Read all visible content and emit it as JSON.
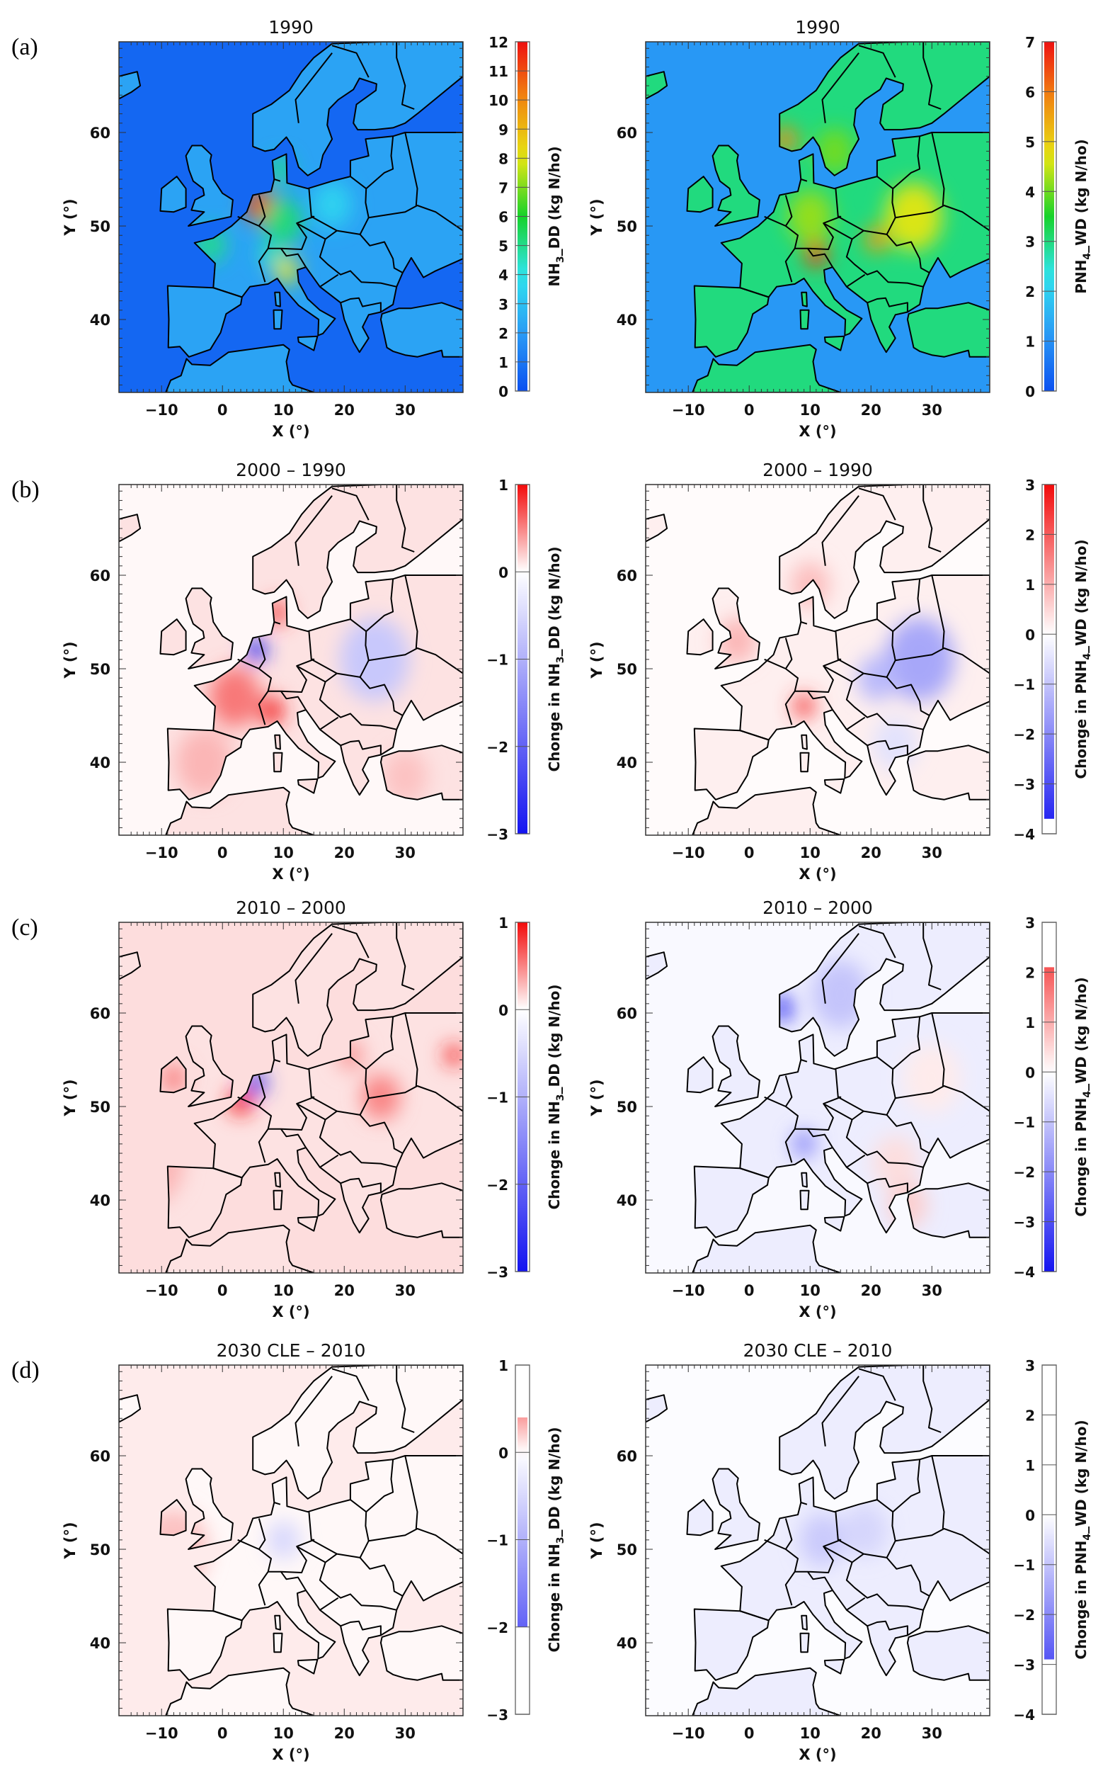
{
  "axes": {
    "xlabel": "X (°)",
    "ylabel": "Y (°)",
    "lon_range": [
      -17,
      39.5
    ],
    "lat_range": [
      32.2,
      69.7
    ],
    "x_ticks": [
      -10,
      0,
      10,
      20,
      30
    ],
    "y_ticks": [
      40,
      50,
      60
    ]
  },
  "colors": {
    "rainbow": [
      "#0b50f0",
      "#2a9cf5",
      "#30e4ee",
      "#16d22a",
      "#e6e612",
      "#f08a10",
      "#ee1010"
    ],
    "neg": "#1414f0",
    "pos": "#f20a0a",
    "sea_border": "#000000"
  },
  "panels": [
    {
      "row_label": "(a)",
      "title": "1990",
      "cmap": "rainbow",
      "colorbar": {
        "prefix": "",
        "species": "NH",
        "sub": "3",
        "suffix": "_DD (kg N/ho)",
        "ticks": [
          12,
          11,
          10,
          9,
          8,
          7,
          6,
          5,
          4,
          3,
          2,
          1,
          0
        ],
        "min": 0,
        "max": 12,
        "fill": [
          0,
          12
        ]
      },
      "field": {
        "sea": 0.6,
        "land": 2.2,
        "hotspots": [
          {
            "lon": 6,
            "lat": 52.2,
            "value": 11,
            "r": 1.6
          },
          {
            "lon": -2,
            "lat": 48,
            "value": 5,
            "r": 1.8
          },
          {
            "lon": 10.5,
            "lat": 45.3,
            "value": 8,
            "r": 1.3
          },
          {
            "lon": 10,
            "lat": 50.5,
            "value": 5.2,
            "r": 2.5
          },
          {
            "lon": 9.5,
            "lat": 56,
            "value": 5,
            "r": 1.2
          },
          {
            "lon": 18,
            "lat": 52.3,
            "value": 3.5,
            "r": 2.5
          },
          {
            "lon": 8,
            "lat": 47,
            "value": 4.5,
            "r": 1.2
          }
        ]
      }
    },
    {
      "row_label": "",
      "title": "1990",
      "cmap": "rainbow",
      "colorbar": {
        "prefix": "",
        "species": "PNH",
        "sub": "4",
        "suffix": "_WD (kg N/ho)",
        "ticks": [
          7,
          6,
          5,
          4,
          3,
          2,
          1,
          0
        ],
        "min": 0,
        "max": 7,
        "fill": [
          0,
          7
        ]
      },
      "field": {
        "sea": 1.1,
        "land": 3.0,
        "hotspots": [
          {
            "lon": 27,
            "lat": 51,
            "value": 4.6,
            "r": 4
          },
          {
            "lon": 6,
            "lat": 59.2,
            "value": 5.8,
            "r": 1.2
          },
          {
            "lon": 11,
            "lat": 47,
            "value": 6.5,
            "r": 1.2
          },
          {
            "lon": 21,
            "lat": 48.6,
            "value": 5.6,
            "r": 1.2
          },
          {
            "lon": 10,
            "lat": 51,
            "value": 4.2,
            "r": 3
          },
          {
            "lon": 14,
            "lat": 58,
            "value": 4,
            "r": 2.5
          }
        ]
      }
    },
    {
      "row_label": "(b)",
      "title": "2000 – 1990",
      "cmap": "diverging",
      "colorbar": {
        "prefix": "Chonge in ",
        "species": "NH",
        "sub": "3",
        "suffix": "_DD (kg N/ho)",
        "ticks": [
          1,
          0,
          -1,
          -2,
          -3
        ],
        "min": -3,
        "max": 1,
        "fill": [
          -3,
          1
        ]
      },
      "field": {
        "sea": 0.03,
        "land": 0.12,
        "hotspots": [
          {
            "lon": 2,
            "lat": 47,
            "value": 0.55,
            "r": 3.5
          },
          {
            "lon": 5.5,
            "lat": 52,
            "value": -2.8,
            "r": 1
          },
          {
            "lon": 9,
            "lat": 56,
            "value": 0.8,
            "r": 1
          },
          {
            "lon": 25,
            "lat": 51,
            "value": -0.7,
            "r": 5
          },
          {
            "lon": 8,
            "lat": 45.5,
            "value": 0.9,
            "r": 1.3
          },
          {
            "lon": -3,
            "lat": 40,
            "value": 0.3,
            "r": 4
          },
          {
            "lon": 30,
            "lat": 38.5,
            "value": 0.25,
            "r": 3
          }
        ]
      }
    },
    {
      "row_label": "",
      "title": "2000 – 1990",
      "cmap": "diverging",
      "colorbar": {
        "prefix": "Chonge in ",
        "species": "PNH",
        "sub": "4",
        "suffix": "_WD (kg N/ho)",
        "ticks": [
          3,
          2,
          1,
          0,
          -1,
          -2,
          -3,
          -4
        ],
        "min": -4,
        "max": 3,
        "fill": [
          -3.7,
          3
        ]
      },
      "field": {
        "sea": 0.05,
        "land": 0.2,
        "hotspots": [
          {
            "lon": 28,
            "lat": 51,
            "value": -1.5,
            "r": 5
          },
          {
            "lon": 9,
            "lat": 46,
            "value": 2.4,
            "r": 1
          },
          {
            "lon": -2,
            "lat": 53,
            "value": 0.9,
            "r": 2.5
          },
          {
            "lon": 10,
            "lat": 59,
            "value": 0.8,
            "r": 2.5
          },
          {
            "lon": 21,
            "lat": 49,
            "value": -1.2,
            "r": 2.5
          },
          {
            "lon": 24,
            "lat": 42,
            "value": -0.5,
            "r": 3
          }
        ]
      }
    },
    {
      "row_label": "(c)",
      "title": "2010 – 2000",
      "cmap": "diverging",
      "colorbar": {
        "prefix": "Chonge in ",
        "species": "NH",
        "sub": "3",
        "suffix": "_DD (kg N/ho)",
        "ticks": [
          1,
          0,
          -1,
          -2,
          -3
        ],
        "min": -3,
        "max": 1,
        "fill": [
          -3,
          1
        ]
      },
      "field": {
        "sea": 0.14,
        "land": 0.12,
        "hotspots": [
          {
            "lon": 3,
            "lat": 50.5,
            "value": 0.9,
            "r": 1.2
          },
          {
            "lon": 5.5,
            "lat": 52.5,
            "value": -2.5,
            "r": 1
          },
          {
            "lon": 38,
            "lat": 55.5,
            "value": 0.9,
            "r": 0.8
          },
          {
            "lon": 26,
            "lat": 51,
            "value": 0.5,
            "r": 2.5
          },
          {
            "lon": -8,
            "lat": 53,
            "value": 0.5,
            "r": 1.5
          },
          {
            "lon": 21,
            "lat": 55.5,
            "value": 0.4,
            "r": 1.5
          },
          {
            "lon": -12,
            "lat": 44,
            "value": 0.3,
            "r": 5
          }
        ]
      }
    },
    {
      "row_label": "",
      "title": "2010 – 2000",
      "cmap": "diverging",
      "colorbar": {
        "prefix": "Chonge in ",
        "species": "PNH",
        "sub": "4",
        "suffix": "_WD (kg N/ho)",
        "ticks": [
          3,
          2,
          1,
          0,
          -1,
          -2,
          -3,
          -4
        ],
        "min": -4,
        "max": 3,
        "fill": [
          -4,
          2.1
        ]
      },
      "field": {
        "sea": -0.1,
        "land": -0.3,
        "hotspots": [
          {
            "lon": 5.5,
            "lat": 60.5,
            "value": -3.6,
            "r": 1
          },
          {
            "lon": 15,
            "lat": 62,
            "value": -1,
            "r": 4
          },
          {
            "lon": 9,
            "lat": 46,
            "value": -2,
            "r": 1.2
          },
          {
            "lon": 24,
            "lat": 44,
            "value": 0.4,
            "r": 3
          },
          {
            "lon": 26,
            "lat": 39.5,
            "value": 0.6,
            "r": 2.5
          },
          {
            "lon": 30,
            "lat": 53,
            "value": 0.25,
            "r": 4
          }
        ]
      }
    },
    {
      "row_label": "(d)",
      "title": "2030 CLE – 2010",
      "cmap": "diverging",
      "colorbar": {
        "prefix": "Chonge in ",
        "species": "NH",
        "sub": "3",
        "suffix": "_DD (kg N/ho)",
        "ticks": [
          1,
          0,
          -1,
          -2,
          -3
        ],
        "min": -3,
        "max": 1,
        "fill": [
          -2,
          0.4
        ]
      },
      "field": {
        "sea": 0.08,
        "land": 0.03,
        "hotspots": [
          {
            "lon": 10,
            "lat": 51,
            "value": -0.5,
            "r": 2
          },
          {
            "lon": -8,
            "lat": 50,
            "value": 0.25,
            "r": 5
          }
        ]
      }
    },
    {
      "row_label": "",
      "title": "2030 CLE – 2010",
      "cmap": "diverging",
      "colorbar": {
        "prefix": "Chonge in ",
        "species": "PNH",
        "sub": "4",
        "suffix": "_WD (kg N/ho)",
        "ticks": [
          3,
          2,
          1,
          0,
          -1,
          -2,
          -3,
          -4
        ],
        "min": -4,
        "max": 3,
        "fill": [
          -2.9,
          0
        ]
      },
      "field": {
        "sea": -0.05,
        "land": -0.3,
        "hotspots": [
          {
            "lon": 12,
            "lat": 51,
            "value": -0.9,
            "r": 3
          },
          {
            "lon": 19,
            "lat": 52,
            "value": -0.7,
            "r": 3
          }
        ]
      }
    }
  ]
}
